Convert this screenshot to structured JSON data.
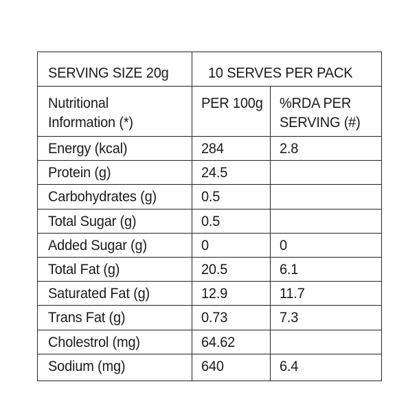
{
  "header": {
    "serving_size": "SERVING SIZE  20g",
    "serves_per_pack": "10 SERVES PER PACK"
  },
  "columns": {
    "nutrient": "Nutritional\nInformation (*)",
    "per100g": "PER 100g",
    "rda": "%RDA PER\nSERVING (#)"
  },
  "rows": [
    {
      "name": "Energy (kcal)",
      "per100g": "284",
      "rda": "2.8"
    },
    {
      "name": "Protein (g)",
      "per100g": "24.5",
      "rda": ""
    },
    {
      "name": "Carbohydrates (g)",
      "per100g": "0.5",
      "rda": ""
    },
    {
      "name": "Total Sugar (g)",
      "per100g": "0.5",
      "rda": ""
    },
    {
      "name": "Added Sugar (g)",
      "per100g": "0",
      "rda": "0"
    },
    {
      "name": "Total Fat (g)",
      "per100g": "20.5",
      "rda": "6.1"
    },
    {
      "name": "Saturated Fat (g)",
      "per100g": "12.9",
      "rda": "11.7"
    },
    {
      "name": "Trans Fat (g)",
      "per100g": "0.73",
      "rda": "7.3"
    },
    {
      "name": "Cholestrol (mg)",
      "per100g": "64.62",
      "rda": ""
    },
    {
      "name": "Sodium (mg)",
      "per100g": "640",
      "rda": "6.4"
    }
  ]
}
